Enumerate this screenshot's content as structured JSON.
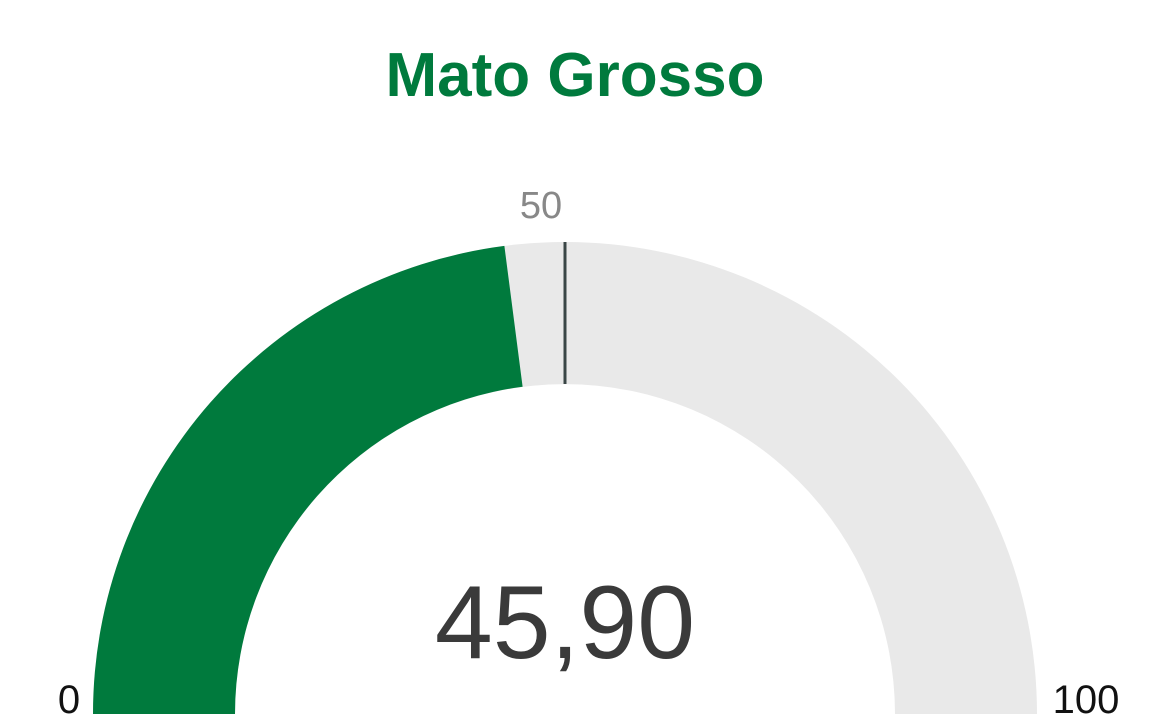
{
  "chart_data": {
    "type": "gauge",
    "title": "Mato Grosso",
    "values": [
      45.9
    ],
    "value_labels": [
      "45,90"
    ],
    "ylim": [
      0,
      100
    ],
    "target": 50,
    "color": "#007a3d",
    "track_color": "#e9e9e9",
    "target_color": "#3a4646"
  }
}
